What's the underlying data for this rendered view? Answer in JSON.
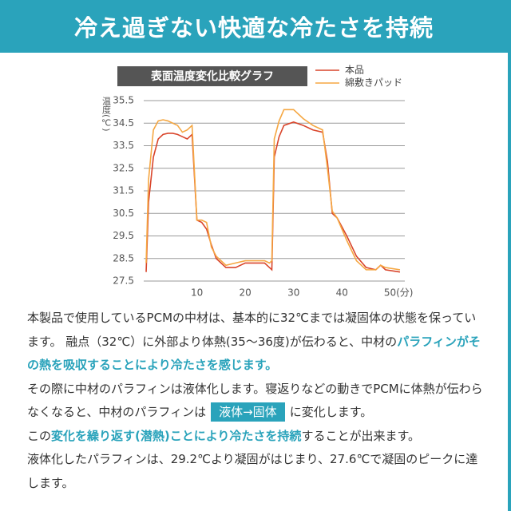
{
  "header": {
    "title": "冷え過ぎない快適な冷たさを持続"
  },
  "chart_data": {
    "type": "line",
    "title": "表面温度変化比較グラフ",
    "y_label": "温度(℃)",
    "x": [
      -0.5,
      0,
      1,
      2,
      3,
      4,
      5,
      6,
      7,
      8,
      9,
      10,
      11,
      12,
      13,
      14,
      16,
      18,
      20,
      22,
      24,
      25,
      25.5,
      26,
      27,
      28,
      30,
      32,
      34,
      36,
      37,
      38,
      39,
      41,
      43,
      45,
      47,
      48,
      49,
      52
    ],
    "series": [
      {
        "name": "本品",
        "color": "#d9452b",
        "values": [
          27.9,
          31,
          33,
          33.8,
          34,
          34.05,
          34.05,
          34,
          33.9,
          33.8,
          34,
          30.2,
          30.1,
          29.8,
          29.1,
          28.5,
          28.1,
          28.1,
          28.3,
          28.3,
          28.3,
          28.1,
          28.0,
          33,
          33.9,
          34.4,
          34.55,
          34.4,
          34.2,
          34.1,
          32.8,
          30.5,
          30.3,
          29.5,
          28.6,
          28.1,
          28.0,
          28.2,
          28.0,
          27.9
        ]
      },
      {
        "name": "綿敷きパッド",
        "color": "#f5a742",
        "values": [
          28.3,
          32,
          34.2,
          34.6,
          34.65,
          34.6,
          34.5,
          34.4,
          34.1,
          34.2,
          34.4,
          30.2,
          30.2,
          30.1,
          29.0,
          28.6,
          28.2,
          28.3,
          28.4,
          28.4,
          28.4,
          28.3,
          28.4,
          33.8,
          34.6,
          35.1,
          35.1,
          34.7,
          34.4,
          34.2,
          32.5,
          30.6,
          30.3,
          29.3,
          28.4,
          28.0,
          28.0,
          28.2,
          28.1,
          28.0
        ]
      }
    ],
    "xlim": [
      -1,
      53
    ],
    "xticks": [
      10,
      20,
      30,
      40,
      {
        "value": 50,
        "label": "50(分)"
      }
    ],
    "ylim": [
      27.5,
      35.5
    ],
    "yticks": [
      27.5,
      28.5,
      29.5,
      30.5,
      31.5,
      32.5,
      33.5,
      34.5,
      35.5
    ],
    "grid": true
  },
  "body": {
    "paragraphs": [
      [
        {
          "plain": "本製品で使用しているPCMの中材は、基本的に32℃までは凝固体の状態を保っています。 融点（32℃）に外部より体熱(35～36度)が伝わると、中材の"
        },
        {
          "emphasis": "パラフィンがその熱を吸収することにより冷たさを感じます。"
        }
      ],
      [
        {
          "plain": "その際に中材のパラフィンは液体化します。寝返りなどの動きでPCMに体熱が伝わらなくなると、中材のパラフィンは"
        },
        {
          "badge": "液体→固体"
        },
        {
          "plain": "に変化します。"
        }
      ],
      [
        {
          "plain": "この"
        },
        {
          "emphasis": "変化を繰り返す(潜熱)ことにより冷たさを持続"
        },
        {
          "plain": "することが出来ます。"
        }
      ],
      [
        {
          "plain": "液体化したパラフィンは、29.2℃より凝固がはじまり、27.6℃で凝固のピークに達します。"
        }
      ]
    ]
  }
}
